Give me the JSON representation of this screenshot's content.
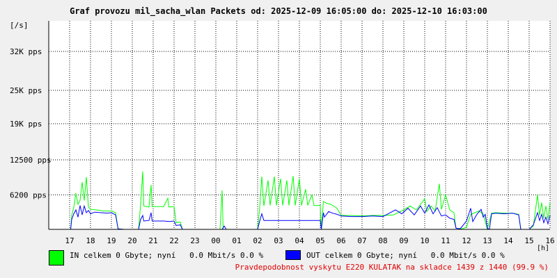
{
  "title": "Graf provozu mil_sacha_wlan Packets od: 2025-12-09 16:05:00 do: 2025-12-10 16:03:00",
  "legend": {
    "in": {
      "label": "IN celkem 0 Gbyte; nyní   0.0 Mbit/s 0.0 %",
      "color": "#00ff00"
    },
    "out": {
      "label": "OUT celkem 0 Gbyte; nyní   0.0 Mbit/s 0.0 %",
      "color": "#0000ff"
    }
  },
  "footer": "Pravdepodobnost vyskytu E220 KULATAK na skladce 1439 z 1440 (99.9 %)",
  "chart_data": {
    "type": "line",
    "title": "Graf provozu mil_sacha_wlan Packets od: 2025-12-09 16:05:00 do: 2025-12-10 16:03:00",
    "ylabel": "[/s]",
    "xlabel": "[h]",
    "ylim": [
      0,
      37500
    ],
    "y_ticks": [
      {
        "label": "6200 pps",
        "value": 6200
      },
      {
        "label": "12500 pps",
        "value": 12500
      },
      {
        "label": "19K pps",
        "value": 19000
      },
      {
        "label": "25K pps",
        "value": 25000
      },
      {
        "label": "32K pps",
        "value": 32000
      }
    ],
    "x_ticks": [
      {
        "label": "17",
        "h": 1
      },
      {
        "label": "18",
        "h": 2
      },
      {
        "label": "19",
        "h": 3
      },
      {
        "label": "20",
        "h": 4
      },
      {
        "label": "21",
        "h": 5
      },
      {
        "label": "22",
        "h": 6
      },
      {
        "label": "23",
        "h": 7
      },
      {
        "label": "00",
        "h": 8
      },
      {
        "label": "01",
        "h": 9
      },
      {
        "label": "02",
        "h": 10
      },
      {
        "label": "03",
        "h": 11
      },
      {
        "label": "04",
        "h": 12
      },
      {
        "label": "05",
        "h": 13
      },
      {
        "label": "06",
        "h": 14
      },
      {
        "label": "07",
        "h": 15
      },
      {
        "label": "08",
        "h": 16
      },
      {
        "label": "09",
        "h": 17
      },
      {
        "label": "10",
        "h": 18
      },
      {
        "label": "11",
        "h": 19
      },
      {
        "label": "12",
        "h": 20
      },
      {
        "label": "13",
        "h": 21
      },
      {
        "label": "14",
        "h": 22
      },
      {
        "label": "15",
        "h": 23
      },
      {
        "label": "16",
        "h": 24
      }
    ],
    "grid": true,
    "series": [
      {
        "name": "IN",
        "color": "#00ff00",
        "points": [
          [
            0,
            0
          ],
          [
            1.05,
            0
          ],
          [
            1.1,
            2500
          ],
          [
            1.2,
            4000
          ],
          [
            1.3,
            6500
          ],
          [
            1.4,
            4500
          ],
          [
            1.5,
            5200
          ],
          [
            1.6,
            8500
          ],
          [
            1.7,
            5200
          ],
          [
            1.8,
            9400
          ],
          [
            1.9,
            4000
          ],
          [
            2.0,
            3600
          ],
          [
            2.3,
            3500
          ],
          [
            2.6,
            3300
          ],
          [
            3.0,
            3300
          ],
          [
            3.2,
            3000
          ],
          [
            3.32,
            100
          ],
          [
            3.6,
            0
          ],
          [
            4.0,
            0
          ],
          [
            4.3,
            0
          ],
          [
            4.4,
            4600
          ],
          [
            4.5,
            10400
          ],
          [
            4.55,
            4200
          ],
          [
            4.8,
            4000
          ],
          [
            4.9,
            8000
          ],
          [
            4.95,
            4100
          ],
          [
            5.2,
            4100
          ],
          [
            5.5,
            4100
          ],
          [
            5.7,
            5600
          ],
          [
            5.75,
            4000
          ],
          [
            6.0,
            4100
          ],
          [
            6.1,
            1200
          ],
          [
            6.3,
            1300
          ],
          [
            6.4,
            0
          ],
          [
            6.8,
            0
          ],
          [
            7.0,
            0
          ],
          [
            7.5,
            0
          ],
          [
            8.2,
            0
          ],
          [
            8.3,
            7000
          ],
          [
            8.35,
            0
          ],
          [
            9.0,
            0
          ],
          [
            9.5,
            0
          ],
          [
            10.0,
            0
          ],
          [
            10.1,
            4000
          ],
          [
            10.2,
            9500
          ],
          [
            10.3,
            4200
          ],
          [
            10.5,
            8800
          ],
          [
            10.6,
            4300
          ],
          [
            10.8,
            9500
          ],
          [
            10.9,
            4300
          ],
          [
            11.1,
            9100
          ],
          [
            11.2,
            4300
          ],
          [
            11.4,
            8800
          ],
          [
            11.5,
            4300
          ],
          [
            11.7,
            9600
          ],
          [
            11.8,
            4300
          ],
          [
            12.0,
            9100
          ],
          [
            12.1,
            4300
          ],
          [
            12.3,
            7200
          ],
          [
            12.4,
            4300
          ],
          [
            12.6,
            6200
          ],
          [
            12.7,
            4300
          ],
          [
            13.0,
            4300
          ],
          [
            13.05,
            0
          ],
          [
            13.15,
            5000
          ],
          [
            13.3,
            4700
          ],
          [
            13.5,
            4500
          ],
          [
            13.8,
            3800
          ],
          [
            14.0,
            2500
          ],
          [
            14.5,
            2500
          ],
          [
            15.0,
            2400
          ],
          [
            15.5,
            2500
          ],
          [
            16.0,
            2500
          ],
          [
            16.5,
            2600
          ],
          [
            17.0,
            3500
          ],
          [
            17.3,
            4200
          ],
          [
            17.6,
            3500
          ],
          [
            18.0,
            5500
          ],
          [
            18.1,
            3200
          ],
          [
            18.3,
            4200
          ],
          [
            18.5,
            3300
          ],
          [
            18.7,
            8200
          ],
          [
            18.8,
            3600
          ],
          [
            19.0,
            6200
          ],
          [
            19.2,
            3500
          ],
          [
            19.4,
            3000
          ],
          [
            19.5,
            200
          ],
          [
            19.8,
            100
          ],
          [
            20.0,
            400
          ],
          [
            20.2,
            2700
          ],
          [
            20.4,
            3000
          ],
          [
            20.6,
            3300
          ],
          [
            20.8,
            2800
          ],
          [
            21.0,
            0
          ],
          [
            21.2,
            2900
          ],
          [
            21.4,
            3000
          ],
          [
            21.8,
            2900
          ],
          [
            22.2,
            2900
          ],
          [
            22.5,
            2700
          ],
          [
            22.6,
            0
          ],
          [
            23.0,
            0
          ],
          [
            23.2,
            600
          ],
          [
            23.4,
            6200
          ],
          [
            23.5,
            2500
          ],
          [
            23.6,
            4800
          ],
          [
            23.7,
            2000
          ],
          [
            23.8,
            4200
          ],
          [
            23.9,
            1800
          ],
          [
            24.0,
            4800
          ]
        ]
      },
      {
        "name": "OUT",
        "color": "#0000ff",
        "points": [
          [
            0,
            0
          ],
          [
            1.05,
            0
          ],
          [
            1.1,
            1800
          ],
          [
            1.2,
            2800
          ],
          [
            1.3,
            3500
          ],
          [
            1.4,
            2200
          ],
          [
            1.5,
            4300
          ],
          [
            1.6,
            2600
          ],
          [
            1.7,
            4200
          ],
          [
            1.8,
            3000
          ],
          [
            1.9,
            3400
          ],
          [
            2.0,
            2800
          ],
          [
            2.2,
            3100
          ],
          [
            2.5,
            3000
          ],
          [
            2.8,
            2900
          ],
          [
            3.0,
            3000
          ],
          [
            3.2,
            2600
          ],
          [
            3.32,
            100
          ],
          [
            3.6,
            0
          ],
          [
            4.0,
            0
          ],
          [
            4.3,
            0
          ],
          [
            4.4,
            1800
          ],
          [
            4.5,
            2500
          ],
          [
            4.55,
            1500
          ],
          [
            4.8,
            1600
          ],
          [
            4.9,
            3000
          ],
          [
            4.95,
            1500
          ],
          [
            5.2,
            1500
          ],
          [
            5.5,
            1500
          ],
          [
            5.8,
            1400
          ],
          [
            6.0,
            1500
          ],
          [
            6.1,
            700
          ],
          [
            6.3,
            800
          ],
          [
            6.4,
            0
          ],
          [
            7.0,
            0
          ],
          [
            7.5,
            0
          ],
          [
            8.2,
            0
          ],
          [
            8.3,
            0
          ],
          [
            8.4,
            600
          ],
          [
            8.5,
            0
          ],
          [
            9.0,
            0
          ],
          [
            9.5,
            0
          ],
          [
            10.0,
            0
          ],
          [
            10.1,
            1500
          ],
          [
            10.2,
            2800
          ],
          [
            10.3,
            1600
          ],
          [
            10.6,
            1600
          ],
          [
            10.9,
            1600
          ],
          [
            11.2,
            1600
          ],
          [
            11.5,
            1600
          ],
          [
            11.8,
            1600
          ],
          [
            12.1,
            1600
          ],
          [
            12.4,
            1600
          ],
          [
            12.7,
            1600
          ],
          [
            13.0,
            1600
          ],
          [
            13.05,
            0
          ],
          [
            13.15,
            3000
          ],
          [
            13.2,
            2200
          ],
          [
            13.4,
            3200
          ],
          [
            13.6,
            2900
          ],
          [
            13.8,
            2700
          ],
          [
            14.0,
            2400
          ],
          [
            14.5,
            2300
          ],
          [
            15.0,
            2300
          ],
          [
            15.5,
            2400
          ],
          [
            16.0,
            2300
          ],
          [
            16.3,
            2900
          ],
          [
            16.6,
            3500
          ],
          [
            16.9,
            2800
          ],
          [
            17.2,
            3800
          ],
          [
            17.5,
            2600
          ],
          [
            17.8,
            4200
          ],
          [
            18.0,
            2900
          ],
          [
            18.2,
            4400
          ],
          [
            18.4,
            2800
          ],
          [
            18.6,
            3900
          ],
          [
            18.8,
            2400
          ],
          [
            19.0,
            2600
          ],
          [
            19.2,
            2000
          ],
          [
            19.4,
            1800
          ],
          [
            19.5,
            200
          ],
          [
            19.7,
            100
          ],
          [
            20.0,
            1500
          ],
          [
            20.2,
            3800
          ],
          [
            20.3,
            1400
          ],
          [
            20.5,
            2700
          ],
          [
            20.7,
            3600
          ],
          [
            20.8,
            2200
          ],
          [
            20.9,
            2700
          ],
          [
            21.0,
            200
          ],
          [
            21.1,
            0
          ],
          [
            21.2,
            2800
          ],
          [
            21.4,
            2900
          ],
          [
            21.8,
            2800
          ],
          [
            22.2,
            2900
          ],
          [
            22.5,
            2600
          ],
          [
            22.6,
            0
          ],
          [
            23.0,
            0
          ],
          [
            23.2,
            800
          ],
          [
            23.4,
            3000
          ],
          [
            23.5,
            1600
          ],
          [
            23.6,
            2700
          ],
          [
            23.7,
            1200
          ],
          [
            23.8,
            2200
          ],
          [
            23.9,
            1000
          ],
          [
            24.0,
            2500
          ]
        ]
      }
    ]
  }
}
